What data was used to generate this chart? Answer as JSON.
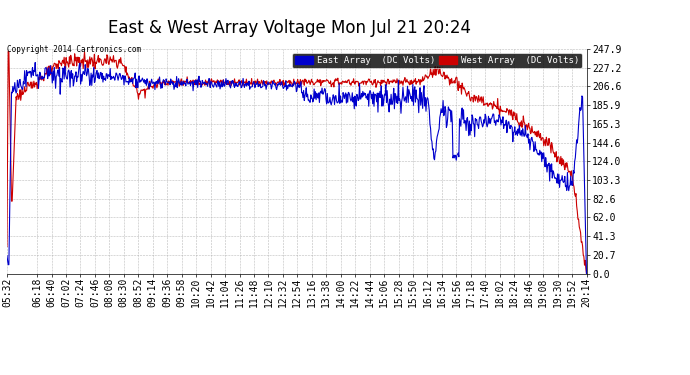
{
  "title": "East & West Array Voltage Mon Jul 21 20:24",
  "copyright": "Copyright 2014 Cartronics.com",
  "legend_east": "East Array  (DC Volts)",
  "legend_west": "West Array  (DC Volts)",
  "east_color": "#0000cc",
  "west_color": "#cc0000",
  "legend_east_bg": "#0000cc",
  "legend_west_bg": "#cc0000",
  "yticks": [
    0.0,
    20.7,
    41.3,
    62.0,
    82.6,
    103.3,
    124.0,
    144.6,
    165.3,
    185.9,
    206.6,
    227.2,
    247.9
  ],
  "ymin": 0.0,
  "ymax": 247.9,
  "bg_color": "#ffffff",
  "plot_bg": "#ffffff",
  "grid_color": "#aaaaaa",
  "title_fontsize": 12,
  "tick_fontsize": 7,
  "xtick_labels": [
    "05:32",
    "06:18",
    "06:40",
    "07:02",
    "07:24",
    "07:46",
    "08:08",
    "08:30",
    "08:52",
    "09:14",
    "09:36",
    "09:58",
    "10:20",
    "10:42",
    "11:04",
    "11:26",
    "11:48",
    "12:10",
    "12:32",
    "12:54",
    "13:16",
    "13:38",
    "14:00",
    "14:22",
    "14:44",
    "15:06",
    "15:28",
    "15:50",
    "16:12",
    "16:34",
    "16:56",
    "17:18",
    "17:40",
    "18:02",
    "18:24",
    "18:46",
    "19:08",
    "19:30",
    "19:52",
    "20:14"
  ]
}
